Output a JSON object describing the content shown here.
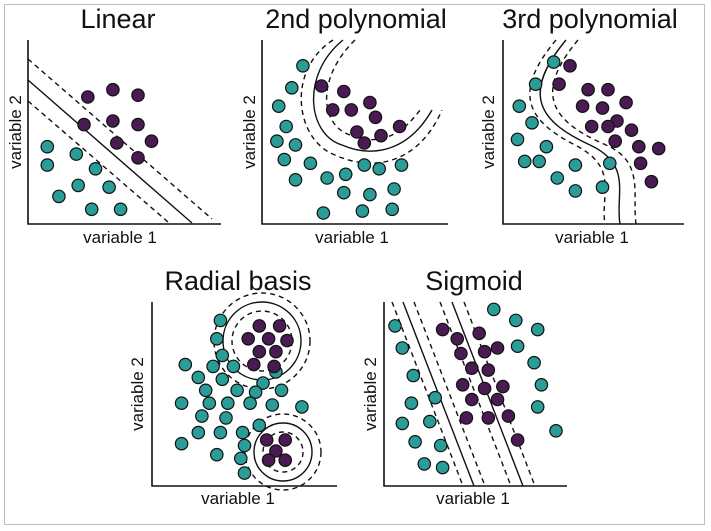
{
  "colors": {
    "class_a": "#2a9d98",
    "class_b": "#4a1a52",
    "stroke": "#111111"
  },
  "panels": [
    {
      "id": "linear",
      "title": "Linear",
      "xlabel": "variable 1",
      "ylabel": "variable 2",
      "points": [
        {
          "x": 0.31,
          "y": 0.69,
          "c": "b"
        },
        {
          "x": 0.44,
          "y": 0.73,
          "c": "b"
        },
        {
          "x": 0.57,
          "y": 0.7,
          "c": "b"
        },
        {
          "x": 0.29,
          "y": 0.54,
          "c": "b"
        },
        {
          "x": 0.44,
          "y": 0.56,
          "c": "b"
        },
        {
          "x": 0.57,
          "y": 0.54,
          "c": "b"
        },
        {
          "x": 0.64,
          "y": 0.45,
          "c": "b"
        },
        {
          "x": 0.46,
          "y": 0.44,
          "c": "b"
        },
        {
          "x": 0.57,
          "y": 0.36,
          "c": "b"
        },
        {
          "x": 0.1,
          "y": 0.42,
          "c": "a"
        },
        {
          "x": 0.25,
          "y": 0.38,
          "c": "a"
        },
        {
          "x": 0.1,
          "y": 0.32,
          "c": "a"
        },
        {
          "x": 0.35,
          "y": 0.3,
          "c": "a"
        },
        {
          "x": 0.26,
          "y": 0.21,
          "c": "a"
        },
        {
          "x": 0.42,
          "y": 0.2,
          "c": "a"
        },
        {
          "x": 0.16,
          "y": 0.15,
          "c": "a"
        },
        {
          "x": 0.33,
          "y": 0.08,
          "c": "a"
        },
        {
          "x": 0.48,
          "y": 0.08,
          "c": "a"
        }
      ]
    },
    {
      "id": "poly2",
      "title": "2nd polynomial",
      "xlabel": "variable 1",
      "ylabel": "variable 2",
      "points": [
        {
          "x": 0.22,
          "y": 0.86,
          "c": "a"
        },
        {
          "x": 0.16,
          "y": 0.74,
          "c": "a"
        },
        {
          "x": 0.09,
          "y": 0.64,
          "c": "a"
        },
        {
          "x": 0.13,
          "y": 0.53,
          "c": "a"
        },
        {
          "x": 0.08,
          "y": 0.45,
          "c": "a"
        },
        {
          "x": 0.18,
          "y": 0.43,
          "c": "a"
        },
        {
          "x": 0.12,
          "y": 0.35,
          "c": "a"
        },
        {
          "x": 0.26,
          "y": 0.33,
          "c": "a"
        },
        {
          "x": 0.18,
          "y": 0.24,
          "c": "a"
        },
        {
          "x": 0.35,
          "y": 0.25,
          "c": "a"
        },
        {
          "x": 0.45,
          "y": 0.27,
          "c": "a"
        },
        {
          "x": 0.55,
          "y": 0.32,
          "c": "a"
        },
        {
          "x": 0.63,
          "y": 0.3,
          "c": "a"
        },
        {
          "x": 0.75,
          "y": 0.32,
          "c": "a"
        },
        {
          "x": 0.44,
          "y": 0.17,
          "c": "a"
        },
        {
          "x": 0.58,
          "y": 0.16,
          "c": "a"
        },
        {
          "x": 0.71,
          "y": 0.19,
          "c": "a"
        },
        {
          "x": 0.54,
          "y": 0.07,
          "c": "a"
        },
        {
          "x": 0.7,
          "y": 0.08,
          "c": "a"
        },
        {
          "x": 0.33,
          "y": 0.06,
          "c": "a"
        },
        {
          "x": 0.32,
          "y": 0.75,
          "c": "b"
        },
        {
          "x": 0.44,
          "y": 0.72,
          "c": "b"
        },
        {
          "x": 0.38,
          "y": 0.62,
          "c": "b"
        },
        {
          "x": 0.48,
          "y": 0.62,
          "c": "b"
        },
        {
          "x": 0.58,
          "y": 0.66,
          "c": "b"
        },
        {
          "x": 0.61,
          "y": 0.58,
          "c": "b"
        },
        {
          "x": 0.51,
          "y": 0.5,
          "c": "b"
        },
        {
          "x": 0.64,
          "y": 0.48,
          "c": "b"
        },
        {
          "x": 0.74,
          "y": 0.53,
          "c": "b"
        },
        {
          "x": 0.55,
          "y": 0.44,
          "c": "b"
        }
      ]
    },
    {
      "id": "poly3",
      "title": "3rd polynomial",
      "xlabel": "variable 1",
      "ylabel": "variable 2",
      "points": [
        {
          "x": 0.28,
          "y": 0.88,
          "c": "a"
        },
        {
          "x": 0.18,
          "y": 0.76,
          "c": "a"
        },
        {
          "x": 0.09,
          "y": 0.64,
          "c": "a"
        },
        {
          "x": 0.16,
          "y": 0.55,
          "c": "a"
        },
        {
          "x": 0.08,
          "y": 0.46,
          "c": "a"
        },
        {
          "x": 0.24,
          "y": 0.42,
          "c": "a"
        },
        {
          "x": 0.2,
          "y": 0.34,
          "c": "a"
        },
        {
          "x": 0.12,
          "y": 0.34,
          "c": "a"
        },
        {
          "x": 0.4,
          "y": 0.32,
          "c": "a"
        },
        {
          "x": 0.59,
          "y": 0.33,
          "c": "a"
        },
        {
          "x": 0.3,
          "y": 0.25,
          "c": "a"
        },
        {
          "x": 0.4,
          "y": 0.18,
          "c": "a"
        },
        {
          "x": 0.55,
          "y": 0.2,
          "c": "a"
        },
        {
          "x": 0.37,
          "y": 0.86,
          "c": "b"
        },
        {
          "x": 0.31,
          "y": 0.76,
          "c": "b"
        },
        {
          "x": 0.47,
          "y": 0.73,
          "c": "b"
        },
        {
          "x": 0.58,
          "y": 0.73,
          "c": "b"
        },
        {
          "x": 0.44,
          "y": 0.64,
          "c": "b"
        },
        {
          "x": 0.55,
          "y": 0.63,
          "c": "b"
        },
        {
          "x": 0.68,
          "y": 0.66,
          "c": "b"
        },
        {
          "x": 0.63,
          "y": 0.56,
          "c": "b"
        },
        {
          "x": 0.49,
          "y": 0.53,
          "c": "b"
        },
        {
          "x": 0.58,
          "y": 0.53,
          "c": "b"
        },
        {
          "x": 0.71,
          "y": 0.51,
          "c": "b"
        },
        {
          "x": 0.62,
          "y": 0.45,
          "c": "b"
        },
        {
          "x": 0.75,
          "y": 0.42,
          "c": "b"
        },
        {
          "x": 0.86,
          "y": 0.41,
          "c": "b"
        },
        {
          "x": 0.76,
          "y": 0.33,
          "c": "b"
        },
        {
          "x": 0.82,
          "y": 0.23,
          "c": "b"
        }
      ]
    },
    {
      "id": "radial",
      "title": "Radial basis",
      "xlabel": "variable 1",
      "ylabel": "variable 2",
      "points": [
        {
          "x": 0.37,
          "y": 0.9,
          "c": "a"
        },
        {
          "x": 0.35,
          "y": 0.8,
          "c": "a"
        },
        {
          "x": 0.38,
          "y": 0.71,
          "c": "a"
        },
        {
          "x": 0.18,
          "y": 0.66,
          "c": "a"
        },
        {
          "x": 0.33,
          "y": 0.65,
          "c": "a"
        },
        {
          "x": 0.44,
          "y": 0.65,
          "c": "a"
        },
        {
          "x": 0.25,
          "y": 0.59,
          "c": "a"
        },
        {
          "x": 0.38,
          "y": 0.58,
          "c": "a"
        },
        {
          "x": 0.67,
          "y": 0.62,
          "c": "a"
        },
        {
          "x": 0.6,
          "y": 0.56,
          "c": "a"
        },
        {
          "x": 0.29,
          "y": 0.52,
          "c": "a"
        },
        {
          "x": 0.46,
          "y": 0.52,
          "c": "a"
        },
        {
          "x": 0.56,
          "y": 0.51,
          "c": "a"
        },
        {
          "x": 0.7,
          "y": 0.52,
          "c": "a"
        },
        {
          "x": 0.16,
          "y": 0.45,
          "c": "a"
        },
        {
          "x": 0.31,
          "y": 0.45,
          "c": "a"
        },
        {
          "x": 0.41,
          "y": 0.45,
          "c": "a"
        },
        {
          "x": 0.53,
          "y": 0.45,
          "c": "a"
        },
        {
          "x": 0.65,
          "y": 0.44,
          "c": "a"
        },
        {
          "x": 0.81,
          "y": 0.43,
          "c": "a"
        },
        {
          "x": 0.27,
          "y": 0.38,
          "c": "a"
        },
        {
          "x": 0.4,
          "y": 0.37,
          "c": "a"
        },
        {
          "x": 0.25,
          "y": 0.29,
          "c": "a"
        },
        {
          "x": 0.37,
          "y": 0.29,
          "c": "a"
        },
        {
          "x": 0.49,
          "y": 0.29,
          "c": "a"
        },
        {
          "x": 0.58,
          "y": 0.33,
          "c": "a"
        },
        {
          "x": 0.16,
          "y": 0.23,
          "c": "a"
        },
        {
          "x": 0.5,
          "y": 0.22,
          "c": "a"
        },
        {
          "x": 0.35,
          "y": 0.17,
          "c": "a"
        },
        {
          "x": 0.48,
          "y": 0.15,
          "c": "a"
        },
        {
          "x": 0.5,
          "y": 0.07,
          "c": "a"
        },
        {
          "x": 0.58,
          "y": 0.87,
          "c": "b"
        },
        {
          "x": 0.69,
          "y": 0.87,
          "c": "b"
        },
        {
          "x": 0.52,
          "y": 0.8,
          "c": "b"
        },
        {
          "x": 0.63,
          "y": 0.8,
          "c": "b"
        },
        {
          "x": 0.73,
          "y": 0.79,
          "c": "b"
        },
        {
          "x": 0.58,
          "y": 0.73,
          "c": "b"
        },
        {
          "x": 0.67,
          "y": 0.73,
          "c": "b"
        },
        {
          "x": 0.55,
          "y": 0.66,
          "c": "b"
        },
        {
          "x": 0.66,
          "y": 0.65,
          "c": "b"
        },
        {
          "x": 0.62,
          "y": 0.25,
          "c": "b"
        },
        {
          "x": 0.72,
          "y": 0.25,
          "c": "b"
        },
        {
          "x": 0.67,
          "y": 0.19,
          "c": "b"
        },
        {
          "x": 0.63,
          "y": 0.14,
          "c": "b"
        },
        {
          "x": 0.72,
          "y": 0.14,
          "c": "b"
        }
      ]
    },
    {
      "id": "sigmoid",
      "title": "Sigmoid",
      "xlabel": "variable 1",
      "ylabel": "variable 2",
      "points": [
        {
          "x": 0.06,
          "y": 0.87,
          "c": "a"
        },
        {
          "x": 0.1,
          "y": 0.75,
          "c": "a"
        },
        {
          "x": 0.16,
          "y": 0.6,
          "c": "a"
        },
        {
          "x": 0.15,
          "y": 0.45,
          "c": "a"
        },
        {
          "x": 0.28,
          "y": 0.48,
          "c": "a"
        },
        {
          "x": 0.1,
          "y": 0.34,
          "c": "a"
        },
        {
          "x": 0.25,
          "y": 0.35,
          "c": "a"
        },
        {
          "x": 0.17,
          "y": 0.24,
          "c": "a"
        },
        {
          "x": 0.31,
          "y": 0.22,
          "c": "a"
        },
        {
          "x": 0.22,
          "y": 0.12,
          "c": "a"
        },
        {
          "x": 0.32,
          "y": 0.1,
          "c": "a"
        },
        {
          "x": 0.6,
          "y": 0.96,
          "c": "a"
        },
        {
          "x": 0.72,
          "y": 0.9,
          "c": "a"
        },
        {
          "x": 0.84,
          "y": 0.85,
          "c": "a"
        },
        {
          "x": 0.73,
          "y": 0.76,
          "c": "a"
        },
        {
          "x": 0.82,
          "y": 0.67,
          "c": "a"
        },
        {
          "x": 0.86,
          "y": 0.55,
          "c": "a"
        },
        {
          "x": 0.84,
          "y": 0.43,
          "c": "a"
        },
        {
          "x": 0.94,
          "y": 0.3,
          "c": "a"
        },
        {
          "x": 0.32,
          "y": 0.85,
          "c": "b"
        },
        {
          "x": 0.4,
          "y": 0.8,
          "c": "b"
        },
        {
          "x": 0.52,
          "y": 0.83,
          "c": "b"
        },
        {
          "x": 0.42,
          "y": 0.72,
          "c": "b"
        },
        {
          "x": 0.55,
          "y": 0.73,
          "c": "b"
        },
        {
          "x": 0.62,
          "y": 0.75,
          "c": "b"
        },
        {
          "x": 0.48,
          "y": 0.64,
          "c": "b"
        },
        {
          "x": 0.57,
          "y": 0.63,
          "c": "b"
        },
        {
          "x": 0.43,
          "y": 0.55,
          "c": "b"
        },
        {
          "x": 0.55,
          "y": 0.53,
          "c": "b"
        },
        {
          "x": 0.65,
          "y": 0.54,
          "c": "b"
        },
        {
          "x": 0.48,
          "y": 0.47,
          "c": "b"
        },
        {
          "x": 0.62,
          "y": 0.47,
          "c": "b"
        },
        {
          "x": 0.45,
          "y": 0.37,
          "c": "b"
        },
        {
          "x": 0.57,
          "y": 0.37,
          "c": "b"
        },
        {
          "x": 0.68,
          "y": 0.38,
          "c": "b"
        },
        {
          "x": 0.73,
          "y": 0.25,
          "c": "b"
        }
      ]
    }
  ]
}
